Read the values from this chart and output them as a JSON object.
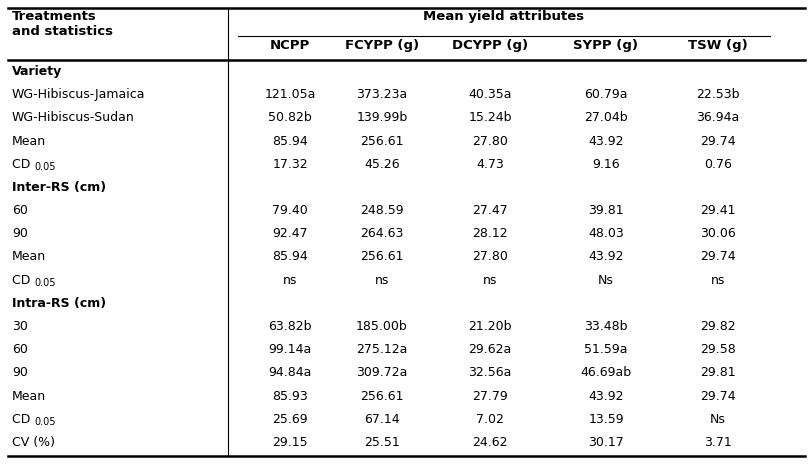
{
  "col_headers": [
    "NCPP",
    "FCYPP (g)",
    "DCYPP (g)",
    "SYPP (g)",
    "TSW (g)"
  ],
  "rows": [
    {
      "label": "Variety",
      "bold": true,
      "values": [
        "",
        "",
        "",
        "",
        ""
      ],
      "cd": false
    },
    {
      "label": "WG-Hibiscus-Jamaica",
      "bold": false,
      "values": [
        "121.05a",
        "373.23a",
        "40.35a",
        "60.79a",
        "22.53b"
      ],
      "cd": false
    },
    {
      "label": "WG-Hibiscus-Sudan",
      "bold": false,
      "values": [
        "50.82b",
        "139.99b",
        "15.24b",
        "27.04b",
        "36.94a"
      ],
      "cd": false
    },
    {
      "label": "Mean",
      "bold": false,
      "values": [
        "85.94",
        "256.61",
        "27.80",
        "43.92",
        "29.74"
      ],
      "cd": false
    },
    {
      "label": "CD 0.05",
      "bold": false,
      "values": [
        "17.32",
        "45.26",
        "4.73",
        "9.16",
        "0.76"
      ],
      "cd": true
    },
    {
      "label": "Inter-RS (cm)",
      "bold": true,
      "values": [
        "",
        "",
        "",
        "",
        ""
      ],
      "cd": false
    },
    {
      "label": "60",
      "bold": false,
      "values": [
        "79.40",
        "248.59",
        "27.47",
        "39.81",
        "29.41"
      ],
      "cd": false
    },
    {
      "label": "90",
      "bold": false,
      "values": [
        "92.47",
        "264.63",
        "28.12",
        "48.03",
        "30.06"
      ],
      "cd": false
    },
    {
      "label": "Mean",
      "bold": false,
      "values": [
        "85.94",
        "256.61",
        "27.80",
        "43.92",
        "29.74"
      ],
      "cd": false
    },
    {
      "label": "CD 0.05",
      "bold": false,
      "values": [
        "ns",
        "ns",
        "ns",
        "Ns",
        "ns"
      ],
      "cd": true
    },
    {
      "label": "Intra-RS (cm)",
      "bold": true,
      "values": [
        "",
        "",
        "",
        "",
        ""
      ],
      "cd": false
    },
    {
      "label": "30",
      "bold": false,
      "values": [
        "63.82b",
        "185.00b",
        "21.20b",
        "33.48b",
        "29.82"
      ],
      "cd": false
    },
    {
      "label": "60",
      "bold": false,
      "values": [
        "99.14a",
        "275.12a",
        "29.62a",
        "51.59a",
        "29.58"
      ],
      "cd": false
    },
    {
      "label": "90",
      "bold": false,
      "values": [
        "94.84a",
        "309.72a",
        "32.56a",
        "46.69ab",
        "29.81"
      ],
      "cd": false
    },
    {
      "label": "Mean",
      "bold": false,
      "values": [
        "85.93",
        "256.61",
        "27.79",
        "43.92",
        "29.74"
      ],
      "cd": false
    },
    {
      "label": "CD 0.05",
      "bold": false,
      "values": [
        "25.69",
        "67.14",
        "7.02",
        "13.59",
        "Ns"
      ],
      "cd": true
    },
    {
      "label": "CV (%)",
      "bold": false,
      "values": [
        "29.15",
        "25.51",
        "24.62",
        "30.17",
        "3.71"
      ],
      "cd": false
    }
  ],
  "bg": "#ffffff",
  "fg": "#000000",
  "lc": "#000000",
  "fs": 9.0,
  "hfs": 9.5
}
